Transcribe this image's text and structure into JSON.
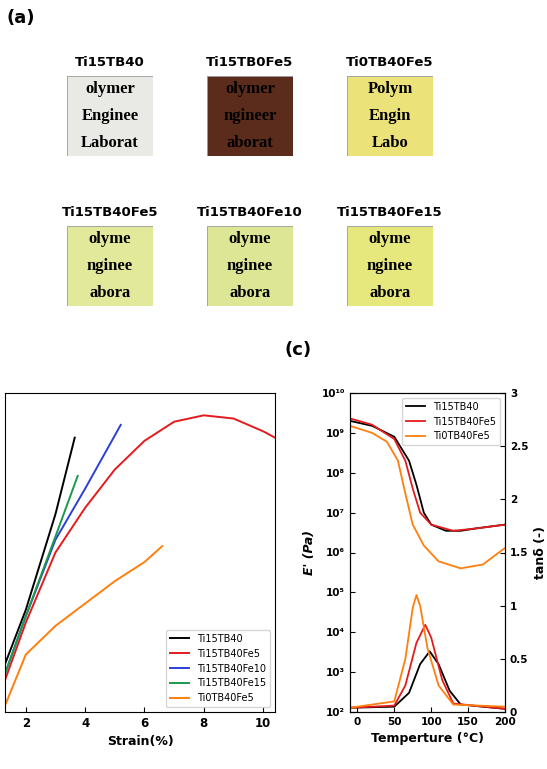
{
  "panel_labels": [
    "(a)",
    "(c)"
  ],
  "photos": [
    {
      "title": "Ti15TB40",
      "color": "#e9e9e6",
      "text": [
        "olymer",
        "Enginee",
        "Laborat"
      ]
    },
    {
      "title": "Ti15TB0Fe5",
      "color": "#5b2c1c",
      "text": [
        "olymer",
        "ngineer",
        "aborat"
      ]
    },
    {
      "title": "Ti0TB40Fe5",
      "color": "#ece27a",
      "text": [
        "Polym",
        "Engin",
        "Labo"
      ]
    },
    {
      "title": "Ti15TB40Fe5",
      "color": "#e3e99a",
      "text": [
        "olyme",
        "nginee",
        "abora"
      ]
    },
    {
      "title": "Ti15TB40Fe10",
      "color": "#dde694",
      "text": [
        "olyme",
        "nginee",
        "abora"
      ]
    },
    {
      "title": "Ti15TB40Fe15",
      "color": "#e6e87e",
      "text": [
        "olyme",
        "nginee",
        "abora"
      ]
    }
  ],
  "chart_data": [
    {
      "type": "line",
      "x_label": "Strain(%)",
      "xlim": [
        1.3,
        10.4
      ],
      "xticks": [
        2,
        4,
        6,
        8,
        10
      ],
      "ylim": [
        0,
        100
      ],
      "tick_labels": "x",
      "legend": "lower right",
      "series": [
        {
          "name": "Ti15TB40",
          "color": "#000000",
          "x": [
            1.3,
            2,
            3,
            3.65
          ],
          "values": [
            15,
            32,
            62,
            86
          ]
        },
        {
          "name": "Ti15TB40Fe5",
          "color": "#e41a1c",
          "x": [
            1.3,
            2,
            3,
            4,
            5,
            6,
            7,
            8,
            9,
            10,
            10.4
          ],
          "values": [
            10,
            28,
            50,
            64,
            76,
            85,
            91,
            93,
            92,
            88,
            86
          ]
        },
        {
          "name": "Ti15TB40Fe10",
          "color": "#2b3fd6",
          "x": [
            1.3,
            2,
            3,
            4,
            5.2
          ],
          "values": [
            12,
            30,
            54,
            70,
            90
          ]
        },
        {
          "name": "Ti15TB40Fe15",
          "color": "#1a9a4a",
          "x": [
            1.3,
            2,
            3,
            3.75
          ],
          "values": [
            12,
            30,
            55,
            74
          ]
        },
        {
          "name": "Ti0TB40Fe5",
          "color": "#ff7f0e",
          "x": [
            1.3,
            2,
            3,
            4,
            5,
            6,
            6.6
          ],
          "values": [
            2,
            18,
            27,
            34,
            41,
            47,
            52
          ]
        }
      ]
    },
    {
      "type": "line",
      "x_label": "Temperture (°C)",
      "y_label": "E' (Pa)",
      "y2_label": "tanδ (-)",
      "log": "y",
      "xlim": [
        -10,
        200
      ],
      "xticks": [
        0,
        50,
        100,
        150,
        200
      ],
      "ylim": [
        100,
        10000000000.0
      ],
      "yticks": [
        {
          "value": 100,
          "label": "10²"
        },
        {
          "value": 1000,
          "label": "10³"
        },
        {
          "value": 10000,
          "label": "10⁴"
        },
        {
          "value": 100000,
          "label": "10⁵"
        },
        {
          "value": 1000000,
          "label": "10⁶"
        },
        {
          "value": 10000000,
          "label": "10⁷"
        },
        {
          "value": 100000000,
          "label": "10⁸"
        },
        {
          "value": 1000000000,
          "label": "10⁹"
        },
        {
          "value": 10000000000,
          "label": "10¹⁰"
        }
      ],
      "y2lim": [
        0,
        3
      ],
      "y2ticks": [
        0,
        0.5,
        1,
        1.5,
        2,
        2.5,
        3
      ],
      "legend": "upper right",
      "series": [
        {
          "name": "Ti15TB40",
          "color": "#000000",
          "x": [
            -10,
            20,
            50,
            70,
            80,
            90,
            100,
            120,
            140,
            160,
            200
          ],
          "values": [
            2000000000.0,
            1500000000.0,
            800000000.0,
            200000000.0,
            50000000.0,
            10000000.0,
            5000000.0,
            3500000.0,
            3500000.0,
            4000000.0,
            5000000.0
          ]
        },
        {
          "name": "Ti15TB40Fe5",
          "color": "#e41a1c",
          "x": [
            -10,
            20,
            50,
            65,
            75,
            85,
            100,
            130,
            160,
            200
          ],
          "values": [
            2300000000.0,
            1600000000.0,
            700000000.0,
            200000000.0,
            40000000.0,
            10000000.0,
            5000000.0,
            3500000.0,
            4000000.0,
            5000000.0
          ]
        },
        {
          "name": "Ti0TB40Fe5",
          "color": "#ff7f0e",
          "x": [
            -10,
            20,
            40,
            55,
            65,
            75,
            90,
            110,
            140,
            170,
            200
          ],
          "values": [
            1500000000.0,
            1000000000.0,
            600000000.0,
            200000000.0,
            30000000.0,
            5000000.0,
            1500000.0,
            600000.0,
            400000.0,
            500000.0,
            1300000.0
          ]
        },
        {
          "name": "Ti15TB40",
          "color": "#000000",
          "axis": "y2",
          "x": [
            -10,
            50,
            70,
            85,
            98,
            110,
            125,
            140,
            200
          ],
          "values": [
            0.04,
            0.05,
            0.18,
            0.45,
            0.57,
            0.45,
            0.2,
            0.07,
            0.03
          ]
        },
        {
          "name": "Ti15TB40Fe5",
          "color": "#e41a1c",
          "axis": "y2",
          "x": [
            -10,
            50,
            65,
            80,
            92,
            100,
            115,
            130,
            200
          ],
          "values": [
            0.04,
            0.06,
            0.25,
            0.65,
            0.82,
            0.7,
            0.3,
            0.08,
            0.03
          ]
        },
        {
          "name": "Ti0TB40Fe5",
          "color": "#ff7f0e",
          "axis": "y2",
          "x": [
            -10,
            50,
            65,
            75,
            80,
            85,
            95,
            110,
            130,
            200
          ],
          "values": [
            0.04,
            0.1,
            0.5,
            0.98,
            1.1,
            1.0,
            0.6,
            0.25,
            0.07,
            0.05
          ]
        }
      ]
    }
  ]
}
